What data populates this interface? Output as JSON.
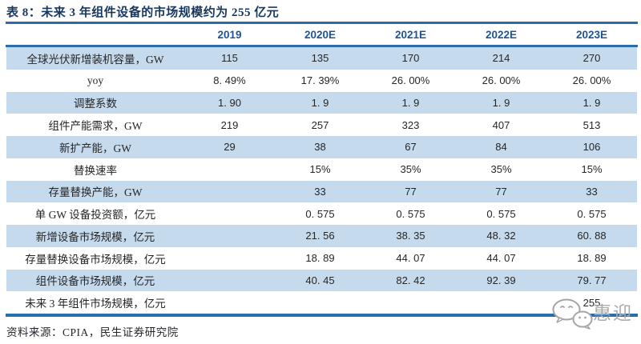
{
  "chart_data": {
    "type": "table",
    "title": "表 8：未来 3 年组件设备的市场规模约为 255 亿元",
    "columns": [
      "2019",
      "2020E",
      "2021E",
      "2022E",
      "2023E"
    ],
    "rows": [
      {
        "label": "全球光伏新增装机容量，GW",
        "values": [
          "115",
          "135",
          "170",
          "214",
          "270"
        ]
      },
      {
        "label": "yoy",
        "values": [
          "8. 49%",
          "17. 39%",
          "26. 00%",
          "26. 00%",
          "26. 00%"
        ]
      },
      {
        "label": "调整系数",
        "values": [
          "1. 90",
          "1. 9",
          "1. 9",
          "1. 9",
          "1. 9"
        ]
      },
      {
        "label": "组件产能需求，GW",
        "values": [
          "219",
          "257",
          "323",
          "407",
          "513"
        ]
      },
      {
        "label": "新扩产能，GW",
        "values": [
          "29",
          "38",
          "67",
          "84",
          "106"
        ]
      },
      {
        "label": "替换速率",
        "values": [
          "",
          "15%",
          "35%",
          "35%",
          "15%"
        ]
      },
      {
        "label": "存量替换产能，GW",
        "values": [
          "",
          "33",
          "77",
          "77",
          "33"
        ]
      },
      {
        "label": "单 GW 设备投资额，亿元",
        "values": [
          "",
          "0. 575",
          "0. 575",
          "0. 575",
          "0. 575"
        ]
      },
      {
        "label": "新增设备市场规模，亿元",
        "values": [
          "",
          "21. 56",
          "38. 35",
          "48. 32",
          "60. 88"
        ]
      },
      {
        "label": "存量替换设备市场规模，亿元",
        "values": [
          "",
          "18. 89",
          "44. 07",
          "44. 07",
          "18. 89"
        ]
      },
      {
        "label": "组件设备市场规模，亿元",
        "values": [
          "",
          "40. 45",
          "82. 42",
          "92. 39",
          "79. 77"
        ]
      },
      {
        "label": "未来 3 年组件市场规模，亿元",
        "values": [
          "",
          "",
          "",
          "",
          "255"
        ]
      }
    ],
    "layout": {
      "striped": true,
      "stripe_start": "first_row",
      "legend": "none",
      "grid": "horizontal-rules-only"
    }
  },
  "source_note": "资料来源：CPIA，民生证券研究院",
  "watermark": {
    "icon": "wechat-icon",
    "text": "惠迎"
  },
  "colors": {
    "title_blue": "#17375E",
    "header_blue": "#1F5496",
    "rule_blue": "#2A6DAD",
    "stripe_blue": "#C6DAEE",
    "text_dark": "#262626",
    "watermark_gray": "#ABABAB"
  }
}
